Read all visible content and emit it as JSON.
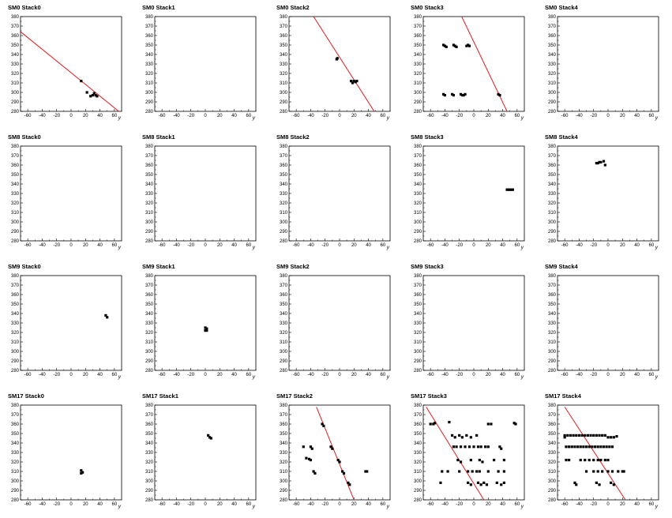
{
  "chart_data": {
    "type": "scatter",
    "x_ticks": [
      "-60",
      "-40",
      "-20",
      "0",
      "20",
      "40",
      "60"
    ],
    "y_ticks": [
      "280",
      "290",
      "300",
      "310",
      "320",
      "330",
      "340",
      "350",
      "360",
      "370",
      "380"
    ],
    "xlabel": "y",
    "xlim": [
      -70,
      70
    ],
    "ylim": [
      280,
      380
    ],
    "grid": false,
    "panels": [
      {
        "title": "SM0 Stack0",
        "fit_line": {
          "x1": -70,
          "y1": 364,
          "x2": 66,
          "y2": 280
        },
        "points": [
          [
            14,
            312
          ],
          [
            22,
            300
          ],
          [
            27,
            296
          ],
          [
            30,
            297
          ],
          [
            32,
            299
          ],
          [
            34,
            297
          ],
          [
            36,
            296
          ]
        ]
      },
      {
        "title": "SM0 Stack1",
        "points": []
      },
      {
        "title": "SM0 Stack2",
        "fit_line": {
          "x1": -36,
          "y1": 380,
          "x2": 48,
          "y2": 280
        },
        "points": [
          [
            -4,
            335
          ],
          [
            -3,
            336
          ],
          [
            16,
            312
          ],
          [
            18,
            310
          ],
          [
            20,
            312
          ],
          [
            22,
            311
          ],
          [
            24,
            312
          ]
        ]
      },
      {
        "title": "SM0 Stack3",
        "fit_line": {
          "x1": -18,
          "y1": 382,
          "x2": 46,
          "y2": 280
        },
        "points": [
          [
            -42,
            350
          ],
          [
            -40,
            349
          ],
          [
            -38,
            348
          ],
          [
            -28,
            350
          ],
          [
            -26,
            349
          ],
          [
            -24,
            348
          ],
          [
            -10,
            349
          ],
          [
            -8,
            350
          ],
          [
            -6,
            349
          ],
          [
            -42,
            298
          ],
          [
            -40,
            297
          ],
          [
            -30,
            298
          ],
          [
            -28,
            297
          ],
          [
            -18,
            298
          ],
          [
            -16,
            297
          ],
          [
            -14,
            297
          ],
          [
            -12,
            298
          ],
          [
            34,
            298
          ],
          [
            36,
            297
          ]
        ]
      },
      {
        "title": "SM0 Stack4",
        "points": []
      },
      {
        "title": "SM8 Stack0",
        "points": []
      },
      {
        "title": "SM8 Stack1",
        "points": []
      },
      {
        "title": "SM8 Stack2",
        "points": []
      },
      {
        "title": "SM8 Stack3",
        "points": [
          [
            46,
            334
          ],
          [
            48,
            334
          ],
          [
            50,
            334
          ],
          [
            52,
            334
          ],
          [
            54,
            334
          ]
        ]
      },
      {
        "title": "SM8 Stack4",
        "points": [
          [
            -16,
            362
          ],
          [
            -14,
            362
          ],
          [
            -12,
            363
          ],
          [
            -10,
            363
          ],
          [
            -6,
            364
          ],
          [
            -4,
            360
          ]
        ]
      },
      {
        "title": "SM9 Stack0",
        "points": [
          [
            48,
            338
          ],
          [
            50,
            336
          ]
        ]
      },
      {
        "title": "SM9 Stack1",
        "points": [
          [
            0,
            325
          ],
          [
            2,
            324
          ],
          [
            0,
            322
          ],
          [
            2,
            322
          ]
        ]
      },
      {
        "title": "SM9 Stack2",
        "points": []
      },
      {
        "title": "SM9 Stack3",
        "points": []
      },
      {
        "title": "SM9 Stack4",
        "points": []
      },
      {
        "title": "SM17 Stack0",
        "points": [
          [
            14,
            311
          ],
          [
            16,
            309
          ],
          [
            14,
            308
          ]
        ]
      },
      {
        "title": "SM17 Stack1",
        "points": [
          [
            4,
            348
          ],
          [
            6,
            346
          ],
          [
            8,
            345
          ]
        ]
      },
      {
        "title": "SM17 Stack2",
        "fit_line": {
          "x1": -32,
          "y1": 378,
          "x2": 20,
          "y2": 280
        },
        "points": [
          [
            -24,
            360
          ],
          [
            -22,
            358
          ],
          [
            -50,
            336
          ],
          [
            -40,
            336
          ],
          [
            -38,
            334
          ],
          [
            -46,
            324
          ],
          [
            -42,
            323
          ],
          [
            -40,
            322
          ],
          [
            -36,
            310
          ],
          [
            -34,
            308
          ],
          [
            -12,
            336
          ],
          [
            -10,
            334
          ],
          [
            -2,
            322
          ],
          [
            0,
            320
          ],
          [
            4,
            310
          ],
          [
            6,
            308
          ],
          [
            12,
            298
          ],
          [
            14,
            296
          ],
          [
            36,
            310
          ],
          [
            38,
            310
          ]
        ]
      },
      {
        "title": "SM17 Stack3",
        "fit_line": {
          "x1": -66,
          "y1": 378,
          "x2": 14,
          "y2": 280
        },
        "points": [
          [
            -60,
            360
          ],
          [
            -56,
            360
          ],
          [
            -54,
            361
          ],
          [
            -34,
            362
          ],
          [
            -30,
            348
          ],
          [
            -26,
            346
          ],
          [
            -20,
            348
          ],
          [
            -16,
            346
          ],
          [
            -10,
            348
          ],
          [
            -4,
            346
          ],
          [
            4,
            348
          ],
          [
            20,
            360
          ],
          [
            24,
            360
          ],
          [
            56,
            361
          ],
          [
            58,
            360
          ],
          [
            -28,
            336
          ],
          [
            -24,
            336
          ],
          [
            -18,
            336
          ],
          [
            -12,
            336
          ],
          [
            -6,
            336
          ],
          [
            0,
            336
          ],
          [
            6,
            336
          ],
          [
            10,
            336
          ],
          [
            16,
            336
          ],
          [
            20,
            336
          ],
          [
            36,
            336
          ],
          [
            38,
            334
          ],
          [
            -22,
            322
          ],
          [
            -18,
            320
          ],
          [
            -4,
            322
          ],
          [
            8,
            322
          ],
          [
            12,
            320
          ],
          [
            28,
            322
          ],
          [
            42,
            322
          ],
          [
            -44,
            310
          ],
          [
            -36,
            310
          ],
          [
            -20,
            310
          ],
          [
            -8,
            310
          ],
          [
            -2,
            310
          ],
          [
            4,
            310
          ],
          [
            8,
            310
          ],
          [
            20,
            310
          ],
          [
            34,
            310
          ],
          [
            42,
            310
          ],
          [
            -46,
            298
          ],
          [
            -8,
            298
          ],
          [
            -4,
            296
          ],
          [
            6,
            298
          ],
          [
            10,
            296
          ],
          [
            14,
            298
          ],
          [
            18,
            296
          ],
          [
            32,
            298
          ],
          [
            38,
            296
          ],
          [
            42,
            298
          ]
        ]
      },
      {
        "title": "SM17 Stack4",
        "fit_line": {
          "x1": -60,
          "y1": 378,
          "x2": 24,
          "y2": 280
        },
        "points": [
          [
            -60,
            348
          ],
          [
            -56,
            348
          ],
          [
            -52,
            348
          ],
          [
            -48,
            348
          ],
          [
            -44,
            348
          ],
          [
            -40,
            348
          ],
          [
            -36,
            348
          ],
          [
            -32,
            348
          ],
          [
            -28,
            348
          ],
          [
            -24,
            348
          ],
          [
            -20,
            348
          ],
          [
            -16,
            348
          ],
          [
            -12,
            348
          ],
          [
            -8,
            348
          ],
          [
            -4,
            348
          ],
          [
            0,
            346
          ],
          [
            4,
            346
          ],
          [
            8,
            346
          ],
          [
            12,
            347
          ],
          [
            -60,
            346
          ],
          [
            -58,
            336
          ],
          [
            -54,
            336
          ],
          [
            -50,
            336
          ],
          [
            -46,
            336
          ],
          [
            -42,
            336
          ],
          [
            -38,
            336
          ],
          [
            -34,
            336
          ],
          [
            -30,
            336
          ],
          [
            -26,
            336
          ],
          [
            -22,
            336
          ],
          [
            -18,
            336
          ],
          [
            -14,
            336
          ],
          [
            -10,
            336
          ],
          [
            -6,
            336
          ],
          [
            -2,
            336
          ],
          [
            2,
            336
          ],
          [
            6,
            336
          ],
          [
            -58,
            322
          ],
          [
            -54,
            322
          ],
          [
            -38,
            322
          ],
          [
            -32,
            322
          ],
          [
            -26,
            322
          ],
          [
            -20,
            322
          ],
          [
            -14,
            322
          ],
          [
            -10,
            322
          ],
          [
            -4,
            322
          ],
          [
            0,
            322
          ],
          [
            -30,
            310
          ],
          [
            -20,
            310
          ],
          [
            -14,
            310
          ],
          [
            -8,
            310
          ],
          [
            0,
            310
          ],
          [
            6,
            310
          ],
          [
            14,
            310
          ],
          [
            20,
            310
          ],
          [
            22,
            310
          ],
          [
            -46,
            298
          ],
          [
            -44,
            296
          ],
          [
            -16,
            298
          ],
          [
            -12,
            296
          ],
          [
            4,
            298
          ],
          [
            8,
            296
          ]
        ]
      }
    ]
  }
}
